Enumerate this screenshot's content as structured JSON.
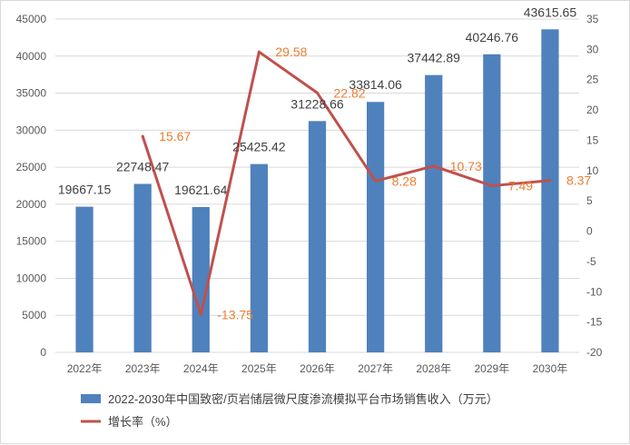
{
  "chart_data": {
    "type": "bar",
    "categories": [
      "2022年",
      "2023年",
      "2024年",
      "2025年",
      "2026年",
      "2027年",
      "2028年",
      "2029年",
      "2030年"
    ],
    "series": [
      {
        "name": "2022-2030年中国致密/页岩储层微尺度渗流模拟平台市场销售收入（万元）",
        "type": "bar",
        "axis": "left",
        "values": [
          19667.15,
          22748.47,
          19621.64,
          25425.42,
          31228.66,
          33814.06,
          37442.89,
          40246.76,
          43615.65
        ],
        "labels": [
          "19667.15",
          "22748.47",
          "19621.64",
          "25425.42",
          "31228.66",
          "33814.06",
          "37442.89",
          "40246.76",
          "43615.65"
        ]
      },
      {
        "name": "增长率（%）",
        "type": "line",
        "axis": "right",
        "values": [
          null,
          15.67,
          -13.75,
          29.58,
          22.82,
          8.28,
          10.73,
          7.49,
          8.37
        ],
        "labels": [
          "",
          "15.67",
          "-13.75",
          "29.58",
          "22.82",
          "8.28",
          "10.73",
          "7.49",
          "8.37"
        ]
      }
    ],
    "y_left": {
      "min": 0,
      "max": 45000,
      "step": 5000,
      "ticks": [
        "0",
        "5000",
        "10000",
        "15000",
        "20000",
        "25000",
        "30000",
        "35000",
        "40000",
        "45000"
      ]
    },
    "y_right": {
      "min": -20,
      "max": 35,
      "step": 5,
      "ticks": [
        "-20",
        "-15",
        "-10",
        "-5",
        "0",
        "5",
        "10",
        "15",
        "20",
        "25",
        "30",
        "35"
      ]
    },
    "grid": true,
    "legend_position": "bottom-left",
    "colors": {
      "bar": "#4f81bd",
      "line": "#c0504d",
      "line_label": "#ed7d31",
      "grid": "#d9d9d9"
    }
  }
}
